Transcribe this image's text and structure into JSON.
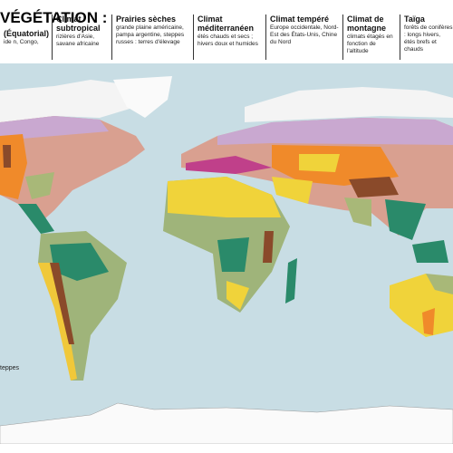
{
  "header": {
    "title": "VÉGÉTATION :",
    "legend": [
      {
        "heading": "(Équatorial)",
        "text": "ide n, Congo,"
      },
      {
        "heading": "Climat subtropical",
        "text": "rizières d'Asie, savane africaine"
      },
      {
        "heading": "Prairies sèches",
        "text": "grande plaine américaine, pampa argentine, steppes russes : terres d'élevage"
      },
      {
        "heading": "Climat méditerranéen",
        "text": "étés chauds et secs ; hivers doux et humides"
      },
      {
        "heading": "Climat tempéré",
        "text": "Europe occidentale, Nord-Est des États-Unis, Chine du Nord"
      },
      {
        "heading": "Climat de montagne",
        "text": "climats étagés en fonction de l'altitude"
      },
      {
        "heading": "Taïga",
        "text": "forêts de conifères : longs hivers, étés brefs et chauds"
      }
    ]
  },
  "map": {
    "labels": [
      "teppes"
    ]
  }
}
